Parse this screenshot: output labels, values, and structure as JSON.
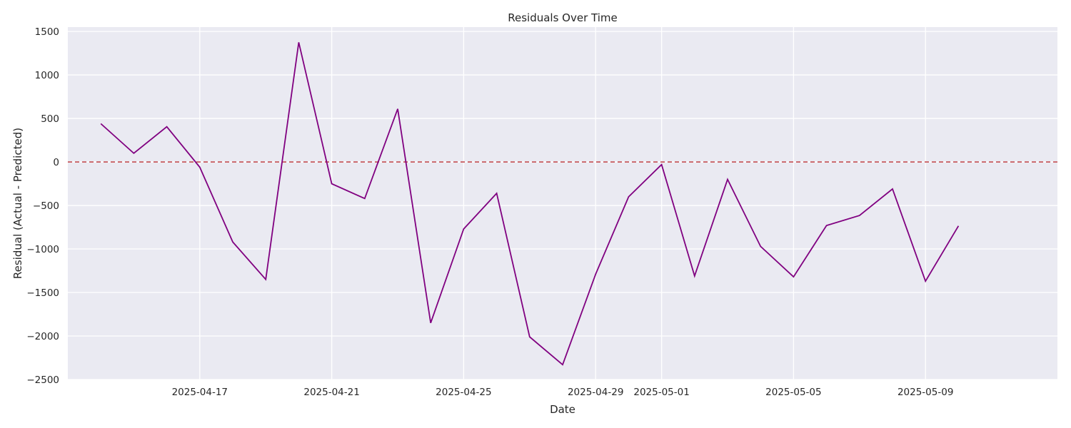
{
  "chart_data": {
    "type": "line",
    "title": "Residuals Over Time",
    "xlabel": "Date",
    "ylabel": "Residual (Actual - Predicted)",
    "ylim": [
      -2500,
      1550
    ],
    "xlim": [
      "2025-04-13",
      "2025-05-13"
    ],
    "grid": true,
    "x_ticks": [
      "2025-04-17",
      "2025-04-21",
      "2025-04-25",
      "2025-04-29",
      "2025-05-01",
      "2025-05-05",
      "2025-05-09"
    ],
    "y_ticks": [
      -2500,
      -2000,
      -1500,
      -1000,
      -500,
      0,
      500,
      1000,
      1500
    ],
    "reference_line": {
      "y": 0,
      "style": "dashed",
      "color": "#c44e52"
    },
    "series": [
      {
        "color": "#800080",
        "points": [
          {
            "x": "2025-04-14",
            "y": 440
          },
          {
            "x": "2025-04-15",
            "y": 100
          },
          {
            "x": "2025-04-16",
            "y": 405
          },
          {
            "x": "2025-04-17",
            "y": -60
          },
          {
            "x": "2025-04-18",
            "y": -920
          },
          {
            "x": "2025-04-19",
            "y": -1350
          },
          {
            "x": "2025-04-20",
            "y": 1375
          },
          {
            "x": "2025-04-21",
            "y": -250
          },
          {
            "x": "2025-04-22",
            "y": -420
          },
          {
            "x": "2025-04-23",
            "y": 610
          },
          {
            "x": "2025-04-24",
            "y": -1850
          },
          {
            "x": "2025-04-25",
            "y": -770
          },
          {
            "x": "2025-04-26",
            "y": -360
          },
          {
            "x": "2025-04-27",
            "y": -2010
          },
          {
            "x": "2025-04-28",
            "y": -2330
          },
          {
            "x": "2025-04-29",
            "y": -1290
          },
          {
            "x": "2025-04-30",
            "y": -400
          },
          {
            "x": "2025-05-01",
            "y": -30
          },
          {
            "x": "2025-05-02",
            "y": -1310
          },
          {
            "x": "2025-05-03",
            "y": -200
          },
          {
            "x": "2025-05-04",
            "y": -970
          },
          {
            "x": "2025-05-05",
            "y": -1320
          },
          {
            "x": "2025-05-06",
            "y": -730
          },
          {
            "x": "2025-05-07",
            "y": -615
          },
          {
            "x": "2025-05-08",
            "y": -310
          },
          {
            "x": "2025-05-09",
            "y": -1370
          },
          {
            "x": "2025-05-10",
            "y": -735
          }
        ]
      }
    ],
    "colors": {
      "plot_background": "#eaeaf2",
      "grid": "#ffffff"
    }
  }
}
